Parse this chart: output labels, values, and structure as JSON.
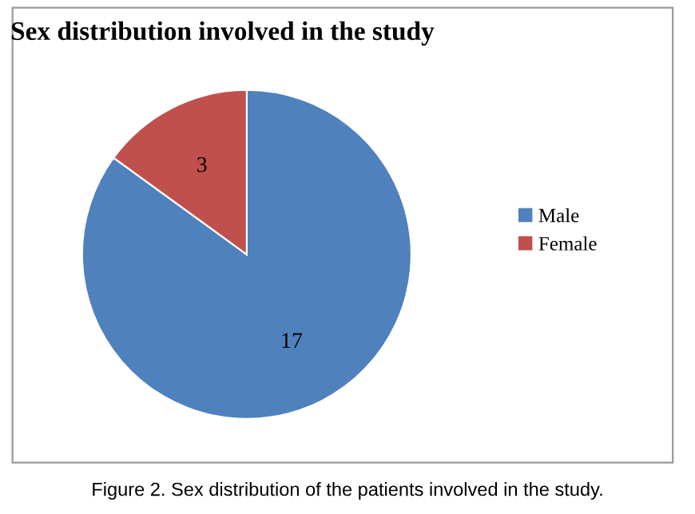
{
  "chart_data": {
    "type": "pie",
    "title": "Sex distribution involved in the study",
    "categories": [
      "Male",
      "Female"
    ],
    "values": [
      17,
      3
    ],
    "colors": [
      "#4f81bd",
      "#c0504d"
    ],
    "data_labels": true,
    "legend": "right",
    "annotations": [
      "Figure 2. Sex distribution of the patients involved in the study."
    ]
  }
}
